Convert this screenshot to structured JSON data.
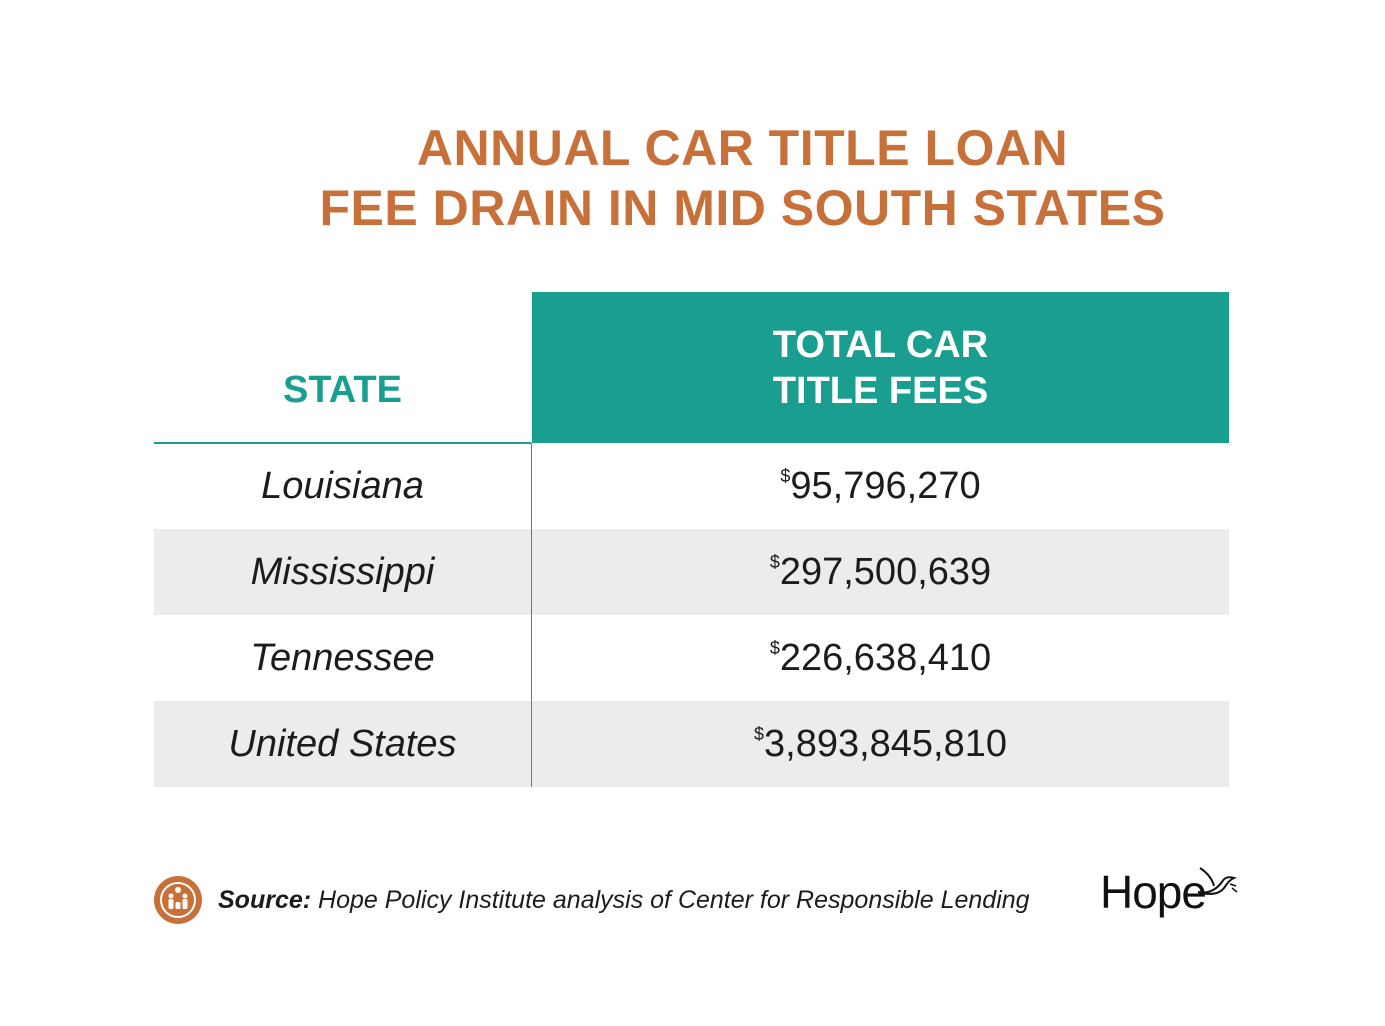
{
  "title": {
    "line1": "ANNUAL CAR TITLE LOAN",
    "line2": "FEE DRAIN IN MID SOUTH STATES"
  },
  "colors": {
    "title": "#c8703a",
    "accent": "#1a9e90",
    "shaded_row": "#ececec"
  },
  "table": {
    "col_state": "STATE",
    "col_fees_line1": "TOTAL CAR",
    "col_fees_line2": "TITLE FEES",
    "currency_symbol": "$",
    "rows": [
      {
        "state": "Louisiana",
        "fees": "95,796,270"
      },
      {
        "state": "Mississippi",
        "fees": "297,500,639"
      },
      {
        "state": "Tennessee",
        "fees": "226,638,410"
      },
      {
        "state": "United States",
        "fees": "3,893,845,810"
      }
    ]
  },
  "chart_data": {
    "type": "table",
    "title": "ANNUAL CAR TITLE LOAN FEE DRAIN IN MID SOUTH STATES",
    "columns": [
      "STATE",
      "TOTAL CAR TITLE FEES"
    ],
    "categories": [
      "Louisiana",
      "Mississippi",
      "Tennessee",
      "United States"
    ],
    "values": [
      95796270,
      297500639,
      226638410,
      3893845810
    ]
  },
  "footer": {
    "source_label": "Source:",
    "source_text": "Hope Policy Institute analysis of Center for Responsible Lending",
    "logo_text": "Hope",
    "badge_icon": "family-icon",
    "logo_icon": "dove-icon"
  }
}
